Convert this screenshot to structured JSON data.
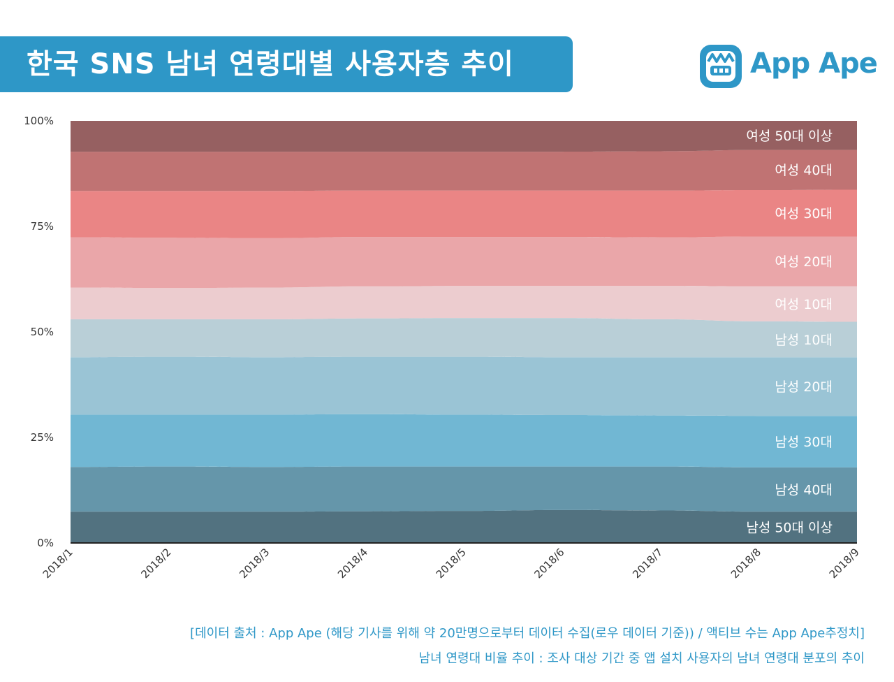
{
  "header": {
    "title": "한국 SNS 남녀 연령대별 사용자층 추이"
  },
  "logo": {
    "text": "App Ape",
    "icon": "app-ape-monkey-icon",
    "color": "#2e97c7"
  },
  "footnotes": [
    "[데이터 출처 : App Ape (해당 기사를 위해 약 20만명으로부터 데이터 수집(로우 데이터 기준)) / 액티브 수는 App Ape추정치]",
    "남녀 연령대 비율 추이 : 조사 대상 기간 중 앱 설치 사용자의 남녀 연령대 분포의 추이"
  ],
  "chart_data": {
    "type": "area",
    "stacked": true,
    "normalized": true,
    "x": [
      "2018/1",
      "2018/2",
      "2018/3",
      "2018/4",
      "2018/5",
      "2018/6",
      "2018/7",
      "2018/8",
      "2018/9"
    ],
    "ylim": [
      0,
      100
    ],
    "yticks": [
      "0%",
      "25%",
      "50%",
      "75%",
      "100%"
    ],
    "ytick_values": [
      0,
      25,
      50,
      75,
      100
    ],
    "grid": false,
    "legend": "inline-right",
    "series": [
      {
        "name": "남성 50대 이상",
        "color": "#527280",
        "values": [
          7.4,
          7.4,
          7.4,
          7.5,
          7.6,
          7.8,
          7.7,
          7.4,
          7.4
        ]
      },
      {
        "name": "남성 40대",
        "color": "#6596aa",
        "values": [
          10.6,
          10.7,
          10.6,
          10.6,
          10.5,
          10.3,
          10.4,
          10.5,
          10.5
        ]
      },
      {
        "name": "남성 30대",
        "color": "#71b7d3",
        "values": [
          12.4,
          12.3,
          12.4,
          12.4,
          12.3,
          12.2,
          12.1,
          12.2,
          12.2
        ]
      },
      {
        "name": "남성 20대",
        "color": "#9ac4d5",
        "values": [
          13.6,
          13.7,
          13.6,
          13.6,
          13.7,
          13.7,
          13.8,
          13.9,
          13.9
        ]
      },
      {
        "name": "남성 10대",
        "color": "#b9cfd7",
        "values": [
          9.0,
          8.9,
          9.0,
          9.1,
          9.2,
          9.3,
          9.0,
          8.5,
          8.4
        ]
      },
      {
        "name": "여성 10대",
        "color": "#eccccf",
        "values": [
          7.5,
          7.4,
          7.5,
          7.6,
          7.6,
          7.6,
          7.9,
          8.3,
          8.4
        ]
      },
      {
        "name": "여성 20대",
        "color": "#eaa6a9",
        "values": [
          11.9,
          11.9,
          11.7,
          11.7,
          11.6,
          11.6,
          11.5,
          11.8,
          11.8
        ]
      },
      {
        "name": "여성 30대",
        "color": "#ea8585",
        "values": [
          11.0,
          11.1,
          11.2,
          11.0,
          11.0,
          11.0,
          11.1,
          11.0,
          11.1
        ]
      },
      {
        "name": "여성 40대",
        "color": "#c07373",
        "values": [
          9.3,
          9.3,
          9.3,
          9.2,
          9.2,
          9.2,
          9.3,
          9.5,
          9.4
        ]
      },
      {
        "name": "여성 50대 이상",
        "color": "#966061",
        "values": [
          7.3,
          7.3,
          7.3,
          7.3,
          7.3,
          7.3,
          7.2,
          6.9,
          6.9
        ]
      }
    ]
  }
}
